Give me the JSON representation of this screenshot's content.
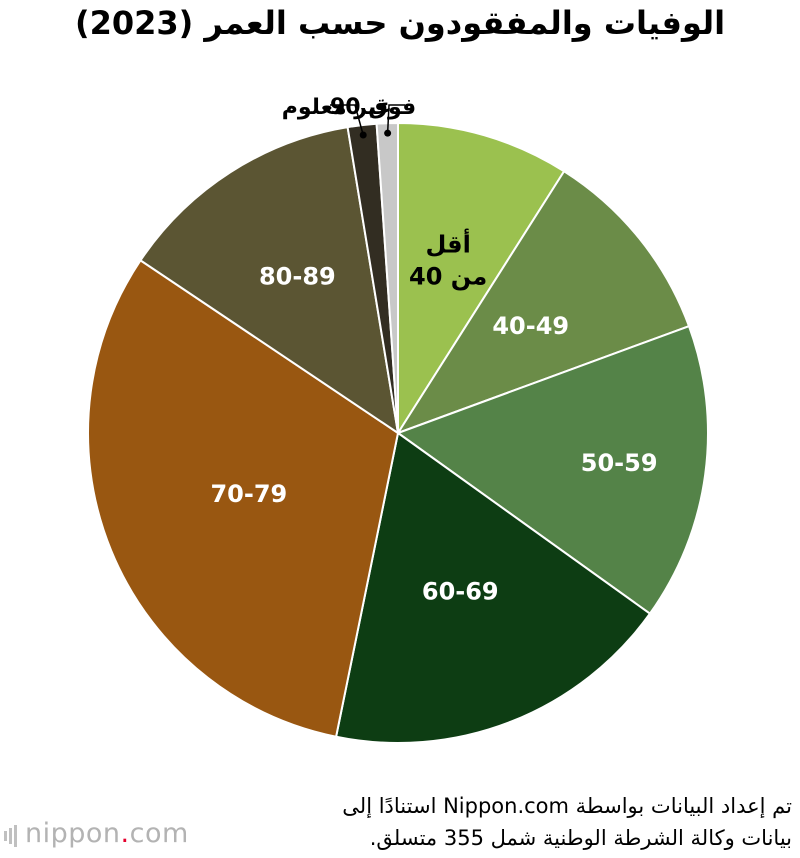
{
  "title": "الوفيات والمفقودون حسب العمر (2023)",
  "chart_data": {
    "type": "pie",
    "title": "الوفيات والمفقودون حسب العمر (2023)",
    "start": "12 o'clock",
    "direction": "clockwise",
    "slices": [
      {
        "label": "أقل من 40",
        "value": 9.0,
        "color": "#9bc14f",
        "label_color": "#000000"
      },
      {
        "label": "40-49",
        "value": 10.4,
        "color": "#6b8c48",
        "label_color": "#ffffff"
      },
      {
        "label": "50-59",
        "value": 15.5,
        "color": "#548348",
        "label_color": "#ffffff"
      },
      {
        "label": "60-69",
        "value": 18.3,
        "color": "#0d3d13",
        "label_color": "#ffffff"
      },
      {
        "label": "70-79",
        "value": 31.2,
        "color": "#995711",
        "label_color": "#ffffff"
      },
      {
        "label": "80-89",
        "value": 13.0,
        "color": "#5b5533",
        "label_color": "#ffffff"
      },
      {
        "label": "فوق 90",
        "value": 1.5,
        "color": "#322d22",
        "label_color": "#000000"
      },
      {
        "label": "غير معلوم",
        "value": 1.1,
        "color": "#c8c8c8",
        "label_color": "#000000"
      }
    ]
  },
  "footnote": {
    "line1": "تم إعداد البيانات بواسطة Nippon.com استنادًا إلى",
    "line2": "بيانات وكالة الشرطة الوطنية شمل 355 متسلق."
  },
  "brand": {
    "name": "nippon",
    "dot": ".",
    "suffix": "com"
  }
}
